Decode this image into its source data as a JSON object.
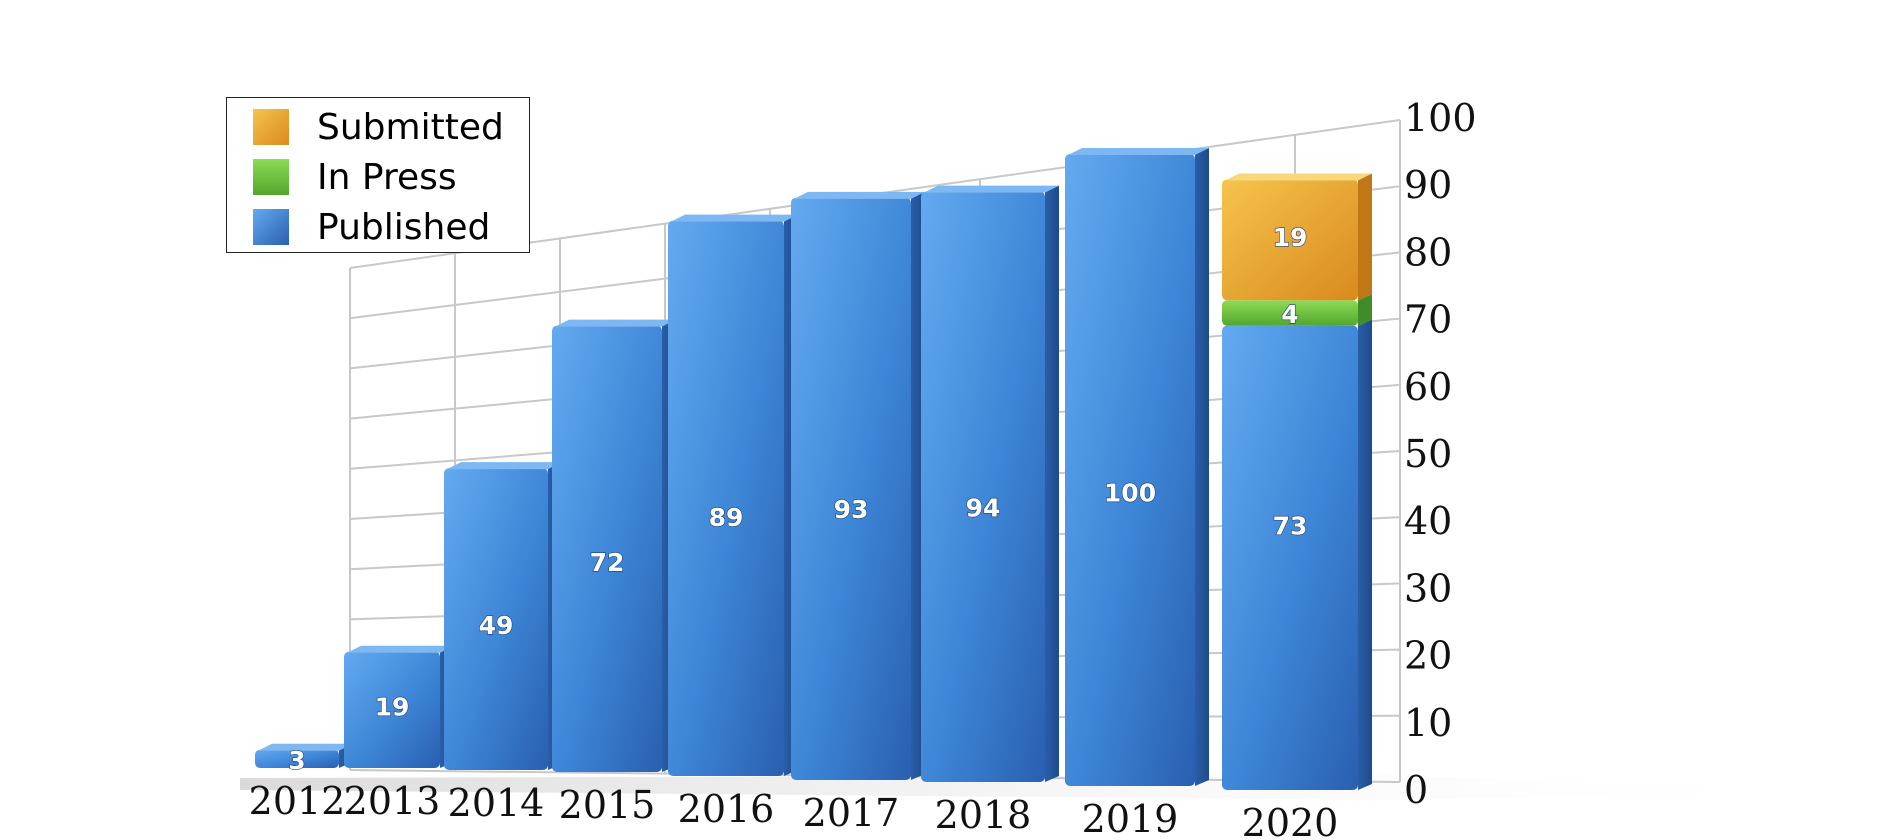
{
  "chart_data": {
    "type": "bar",
    "stacked": true,
    "categories": [
      "2012",
      "2013",
      "2014",
      "2015",
      "2016",
      "2017",
      "2018",
      "2019",
      "2020"
    ],
    "series": [
      {
        "name": "Published",
        "values": [
          3,
          19,
          49,
          72,
          89,
          93,
          94,
          100,
          73
        ],
        "color": "#3f86d6"
      },
      {
        "name": "In Press",
        "values": [
          0,
          0,
          0,
          0,
          0,
          0,
          0,
          0,
          4
        ],
        "color": "#6cbf3e"
      },
      {
        "name": "Submitted",
        "values": [
          0,
          0,
          0,
          0,
          0,
          0,
          0,
          0,
          19
        ],
        "color": "#f0a82a"
      }
    ],
    "ylim": [
      0,
      100
    ],
    "yticks": [
      0,
      10,
      20,
      30,
      40,
      50,
      60,
      70,
      80,
      90,
      100
    ],
    "y_axis_position": "right",
    "grid": true,
    "legend_position": "top-left",
    "style": "3d-perspective"
  },
  "legend": {
    "items": [
      "Submitted",
      "In Press",
      "Published"
    ]
  }
}
